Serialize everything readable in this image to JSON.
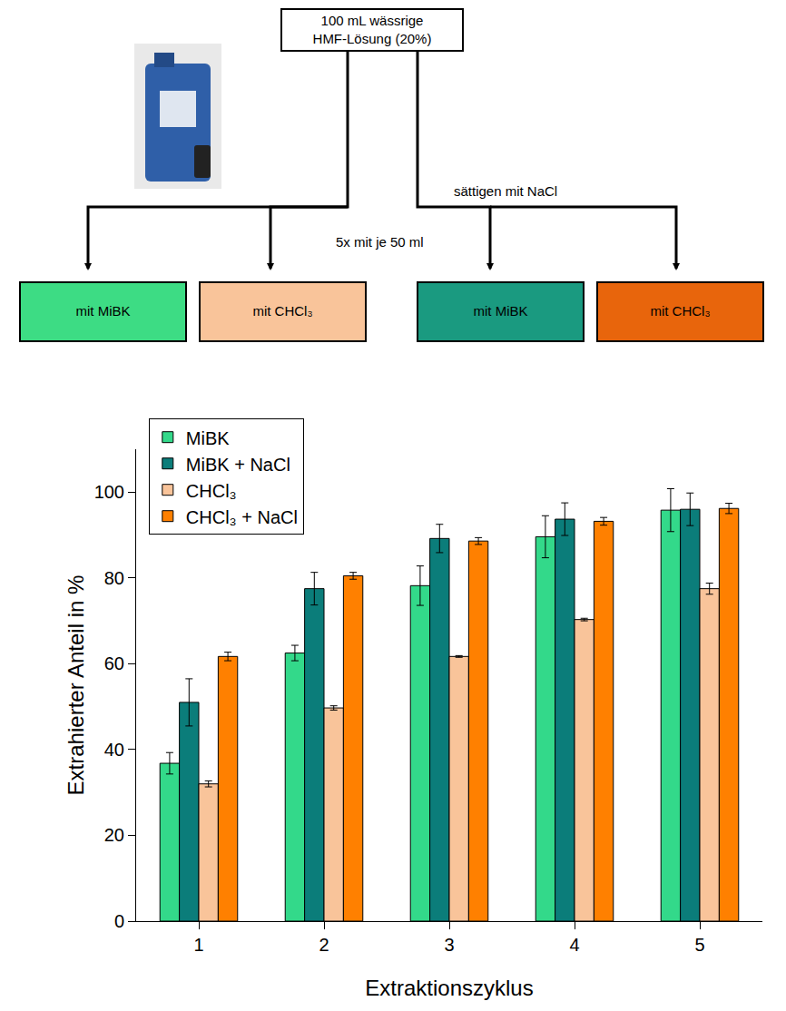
{
  "chart_data": {
    "type": "bar",
    "x_label": "Extraktionszyklus",
    "y_label": "Extrahierter Anteil in %",
    "categories": [
      "1",
      "2",
      "3",
      "4",
      "5"
    ],
    "series": [
      {
        "name": "MiBK",
        "color": "#33d98a",
        "values": [
          36.8,
          62.5,
          78.2,
          89.6,
          95.8
        ],
        "errors": [
          2.5,
          1.8,
          4.6,
          4.9,
          5.0
        ]
      },
      {
        "name": "MiBK + NaCl",
        "color": "#0b7d7a",
        "values": [
          51.0,
          77.5,
          89.2,
          93.7,
          96.0
        ],
        "errors": [
          5.5,
          3.8,
          3.3,
          3.8,
          3.8
        ]
      },
      {
        "name": "CHCl₃",
        "color": "#f9c49a",
        "values": [
          32.0,
          49.7,
          61.7,
          70.3,
          77.5
        ],
        "errors": [
          0.7,
          0.5,
          0.2,
          0.3,
          1.3
        ]
      },
      {
        "name": "CHCl₃ + NaCl",
        "color": "#ff8000",
        "values": [
          61.7,
          80.5,
          88.6,
          93.2,
          96.2
        ],
        "errors": [
          1.0,
          0.8,
          0.8,
          0.9,
          1.2
        ]
      }
    ],
    "ylim": [
      0,
      110
    ],
    "yticks": [
      0,
      20,
      40,
      60,
      80,
      100
    ],
    "legend": "upper left",
    "grid": false
  },
  "diagram": {
    "source": {
      "lines": [
        "100 mL wässrige",
        "HMF-Lösung (20%)"
      ]
    },
    "right_branch_label": "sättigen mit NaCl",
    "extraction_label": "5x mit je 50 ml",
    "boxes": [
      {
        "label": "mit MiBK",
        "color": "#3ddc84"
      },
      {
        "label": "mit CHCl₃",
        "color": "#f9c49a"
      },
      {
        "label": "mit MiBK",
        "color": "#1a9a80"
      },
      {
        "label": "mit CHCl₃",
        "color": "#e8650c"
      }
    ]
  }
}
